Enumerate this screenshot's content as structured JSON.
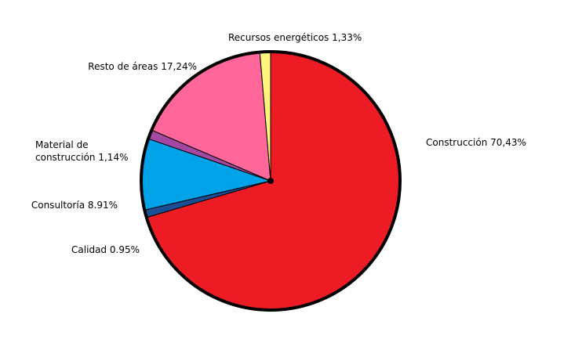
{
  "chart_data": {
    "type": "pie",
    "categories": [
      "Construcción",
      "Calidad",
      "Consultoría",
      "Material de construcción",
      "Resto de áreas",
      "Recursos energéticos"
    ],
    "values": [
      70.43,
      0.95,
      8.91,
      1.14,
      17.24,
      1.33
    ],
    "value_labels": [
      "70,43%",
      "0.95%",
      "8.91%",
      "1,14%",
      "17,24%",
      "1,33%"
    ],
    "colors": [
      "#ed1c24",
      "#1c4e96",
      "#00a2e8",
      "#a349a4",
      "#ff6699",
      "#fff47c"
    ]
  }
}
